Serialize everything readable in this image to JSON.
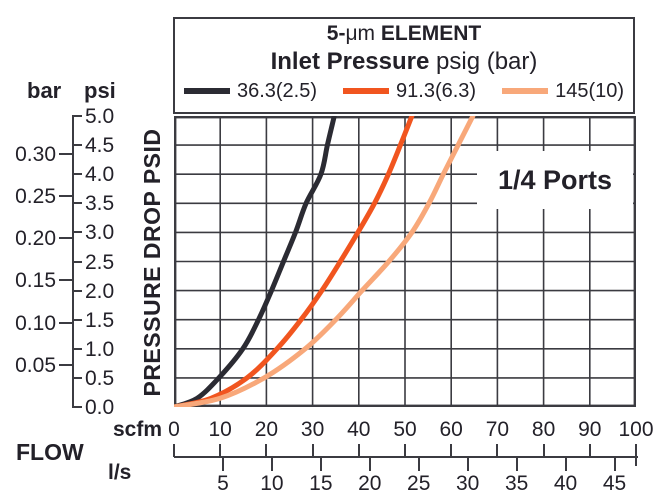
{
  "header": {
    "title_prefix": "5-",
    "title_mu": "μm",
    "title_suffix": " ELEMENT",
    "subtitle_bold": "Inlet Pressure",
    "subtitle_rest": " psig (bar)",
    "legend": [
      {
        "label": "36.3(2.5)",
        "color": "#2b2b33"
      },
      {
        "label": "91.3(6.3)",
        "color": "#f1551f"
      },
      {
        "label": "145(10)",
        "color": "#f8a87a"
      }
    ]
  },
  "y_axis": {
    "unit_left": "bar",
    "unit_right": "psi",
    "axis_title": "PRESSURE DROP PSID",
    "psi_ticks": [
      "5.0",
      "4.5",
      "4.0",
      "3.5",
      "3.0",
      "2.5",
      "2.0",
      "1.5",
      "1.0",
      "0.5",
      "0.0"
    ],
    "bar_ticks": [
      "0.30",
      "0.25",
      "0.20",
      "0.15",
      "0.10",
      "0.05"
    ]
  },
  "x_axis": {
    "unit_scfm": "scfm",
    "flow_label": "FLOW",
    "unit_ls": "l/s",
    "scfm_ticks": [
      0,
      10,
      20,
      30,
      40,
      50,
      60,
      70,
      80,
      90,
      100
    ],
    "ls_ticks": [
      5,
      10,
      15,
      20,
      25,
      30,
      35,
      40,
      45
    ]
  },
  "annotation": "1/4 Ports",
  "colors": {
    "grid": "#3b3b41",
    "text": "#232129"
  },
  "chart_data": {
    "type": "line",
    "title": "5-μm ELEMENT",
    "subtitle": "Inlet Pressure psig (bar)",
    "annotation": "1/4 Ports",
    "xlabel": "FLOW",
    "x_units": [
      "scfm",
      "l/s"
    ],
    "ylabel": "PRESSURE DROP PSID",
    "y_units": [
      "psi",
      "bar"
    ],
    "xlim_scfm": [
      0,
      100
    ],
    "ylim_psi": [
      0,
      5
    ],
    "grid": true,
    "legend_position": "top",
    "series": [
      {
        "name": "36.3(2.5)",
        "color": "#2b2b33",
        "points_scfm_psi": [
          [
            0,
            0
          ],
          [
            5,
            0.15
          ],
          [
            9.7,
            0.5
          ],
          [
            14.9,
            1.0
          ],
          [
            18.3,
            1.5
          ],
          [
            21.1,
            2.0
          ],
          [
            23.7,
            2.5
          ],
          [
            26.3,
            3.0
          ],
          [
            28.6,
            3.5
          ],
          [
            31.8,
            4.0
          ],
          [
            33.2,
            4.5
          ],
          [
            34.7,
            5.0
          ]
        ]
      },
      {
        "name": "91.3(6.3)",
        "color": "#f1551f",
        "points_scfm_psi": [
          [
            0,
            0
          ],
          [
            8,
            0.15
          ],
          [
            15.8,
            0.5
          ],
          [
            22.3,
            1.0
          ],
          [
            27.5,
            1.5
          ],
          [
            32.0,
            2.0
          ],
          [
            36.0,
            2.5
          ],
          [
            39.8,
            3.0
          ],
          [
            43.4,
            3.5
          ],
          [
            46.4,
            4.0
          ],
          [
            49.0,
            4.5
          ],
          [
            51.5,
            5.0
          ]
        ]
      },
      {
        "name": "145(10)",
        "color": "#f8a87a",
        "points_scfm_psi": [
          [
            0,
            0
          ],
          [
            10,
            0.15
          ],
          [
            19.5,
            0.5
          ],
          [
            28.4,
            1.0
          ],
          [
            35.0,
            1.5
          ],
          [
            40.7,
            2.0
          ],
          [
            46.5,
            2.5
          ],
          [
            51.5,
            3.0
          ],
          [
            55.2,
            3.5
          ],
          [
            58.3,
            4.0
          ],
          [
            61.5,
            4.5
          ],
          [
            64.7,
            5.0
          ]
        ]
      }
    ]
  }
}
